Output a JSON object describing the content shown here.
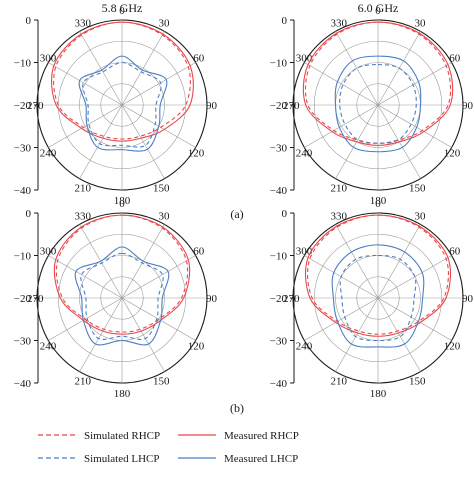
{
  "colors": {
    "rhcp": "#e8474b",
    "lhcp": "#4a7fc4",
    "grid": "#9a9a9a",
    "axis": "#1a1a1a"
  },
  "legend": {
    "sim_rhcp": "Simulated RHCP",
    "meas_rhcp": "Measured RHCP",
    "sim_lhcp": "Simulated LHCP",
    "meas_lhcp": "Measured LHCP"
  },
  "sublabels": {
    "a": "(a)",
    "b": "(b)"
  },
  "chart_data": [
    {
      "type": "polar",
      "title": "5.8 GHz",
      "rlim": [
        -40,
        0
      ],
      "radial_ticks": [
        "0",
        "−10",
        "−20",
        "−30",
        "−40"
      ],
      "angle_ticks": [
        "0",
        "30",
        "60",
        "90",
        "120",
        "150",
        "180",
        "210",
        "240",
        "270",
        "300",
        "330"
      ],
      "theta_deg": [
        0,
        30,
        60,
        90,
        120,
        150,
        180,
        210,
        240,
        270,
        300,
        330,
        360
      ],
      "series": [
        {
          "name": "Simulated RHCP",
          "style": "dashed",
          "r": [
            -1,
            -2,
            -4,
            -10,
            -19,
            -23,
            -24,
            -23,
            -19,
            -10,
            -4,
            -2,
            -1
          ]
        },
        {
          "name": "Measured RHCP",
          "style": "solid",
          "r": [
            -1,
            -1.5,
            -3,
            -8,
            -17,
            -22,
            -23,
            -22,
            -18,
            -9,
            -3,
            -1.5,
            -1
          ]
        },
        {
          "name": "Simulated LHCP",
          "style": "dashed",
          "r": [
            -20,
            -22,
            -19,
            -24,
            -22,
            -18,
            -21,
            -19,
            -22,
            -24,
            -19,
            -22,
            -20
          ]
        },
        {
          "name": "Measured LHCP",
          "style": "solid",
          "r": [
            -17,
            -21,
            -16,
            -22,
            -20,
            -16,
            -19,
            -17,
            -21,
            -23,
            -17,
            -21,
            -17
          ]
        }
      ]
    },
    {
      "type": "polar",
      "title": "6.0 GHz",
      "rlim": [
        -40,
        0
      ],
      "radial_ticks": [
        "0",
        "−10",
        "−20",
        "−30",
        "−40"
      ],
      "angle_ticks": [
        "0",
        "30",
        "60",
        "90",
        "120",
        "150",
        "180",
        "210",
        "240",
        "270",
        "300",
        "330"
      ],
      "theta_deg": [
        0,
        30,
        60,
        90,
        120,
        150,
        180,
        210,
        240,
        270,
        300,
        330,
        360
      ],
      "series": [
        {
          "name": "Simulated RHCP",
          "style": "dashed",
          "r": [
            -1,
            -1.5,
            -3,
            -7,
            -16,
            -21,
            -22,
            -21,
            -16,
            -7,
            -3,
            -1.5,
            -1
          ]
        },
        {
          "name": "Measured RHCP",
          "style": "solid",
          "r": [
            -1,
            -1,
            -2,
            -6,
            -15,
            -20,
            -21,
            -20,
            -15,
            -6,
            -2,
            -1,
            -1
          ]
        },
        {
          "name": "Simulated LHCP",
          "style": "dashed",
          "r": [
            -21,
            -20,
            -21,
            -22,
            -22,
            -21,
            -22,
            -21,
            -22,
            -22,
            -21,
            -20,
            -21
          ]
        },
        {
          "name": "Measured LHCP",
          "style": "solid",
          "r": [
            -17,
            -16,
            -18,
            -20,
            -19,
            -17,
            -18,
            -17,
            -19,
            -20,
            -18,
            -16,
            -17
          ]
        }
      ]
    },
    {
      "type": "polar",
      "title": "",
      "rlim": [
        -40,
        0
      ],
      "radial_ticks": [
        "0",
        "−10",
        "−20",
        "−30",
        "−40"
      ],
      "angle_ticks": [
        "0",
        "30",
        "60",
        "90",
        "120",
        "150",
        "180",
        "210",
        "240",
        "270",
        "300",
        "330"
      ],
      "theta_deg": [
        0,
        30,
        60,
        90,
        120,
        150,
        180,
        210,
        240,
        270,
        300,
        330,
        360
      ],
      "series": [
        {
          "name": "Simulated RHCP",
          "style": "dashed",
          "r": [
            -1,
            -2,
            -5,
            -12,
            -20,
            -23,
            -24,
            -23,
            -20,
            -12,
            -5,
            -2,
            -1
          ]
        },
        {
          "name": "Measured RHCP",
          "style": "solid",
          "r": [
            -1,
            -1.5,
            -4,
            -11,
            -19,
            -22,
            -23,
            -22,
            -19,
            -11,
            -4,
            -1.5,
            -1
          ]
        },
        {
          "name": "Simulated LHCP",
          "style": "dashed",
          "r": [
            -19,
            -21,
            -18,
            -23,
            -21,
            -18,
            -22,
            -18,
            -21,
            -23,
            -18,
            -21,
            -19
          ]
        },
        {
          "name": "Measured LHCP",
          "style": "solid",
          "r": [
            -16,
            -20,
            -15,
            -21,
            -19,
            -15,
            -20,
            -15,
            -19,
            -21,
            -15,
            -20,
            -16
          ]
        }
      ]
    },
    {
      "type": "polar",
      "title": "",
      "rlim": [
        -40,
        0
      ],
      "radial_ticks": [
        "0",
        "−10",
        "−20",
        "−30",
        "−40"
      ],
      "angle_ticks": [
        "0",
        "30",
        "60",
        "90",
        "120",
        "150",
        "180",
        "210",
        "240",
        "270",
        "300",
        "330"
      ],
      "theta_deg": [
        0,
        30,
        60,
        90,
        120,
        150,
        180,
        210,
        240,
        270,
        300,
        330,
        360
      ],
      "series": [
        {
          "name": "Simulated RHCP",
          "style": "dashed",
          "r": [
            -1,
            -1.5,
            -3,
            -9,
            -18,
            -22,
            -23,
            -22,
            -18,
            -9,
            -3,
            -1.5,
            -1
          ]
        },
        {
          "name": "Measured RHCP",
          "style": "solid",
          "r": [
            -1,
            -1,
            -2,
            -8,
            -17,
            -21,
            -22,
            -21,
            -17,
            -8,
            -2,
            -1,
            -1
          ]
        },
        {
          "name": "Simulated LHCP",
          "style": "dashed",
          "r": [
            -20,
            -19,
            -20,
            -23,
            -22,
            -19,
            -20,
            -19,
            -22,
            -23,
            -20,
            -19,
            -20
          ]
        },
        {
          "name": "Measured LHCP",
          "style": "solid",
          "r": [
            -15,
            -15,
            -16,
            -19,
            -18,
            -15,
            -17,
            -15,
            -18,
            -19,
            -16,
            -15,
            -15
          ]
        }
      ]
    }
  ]
}
